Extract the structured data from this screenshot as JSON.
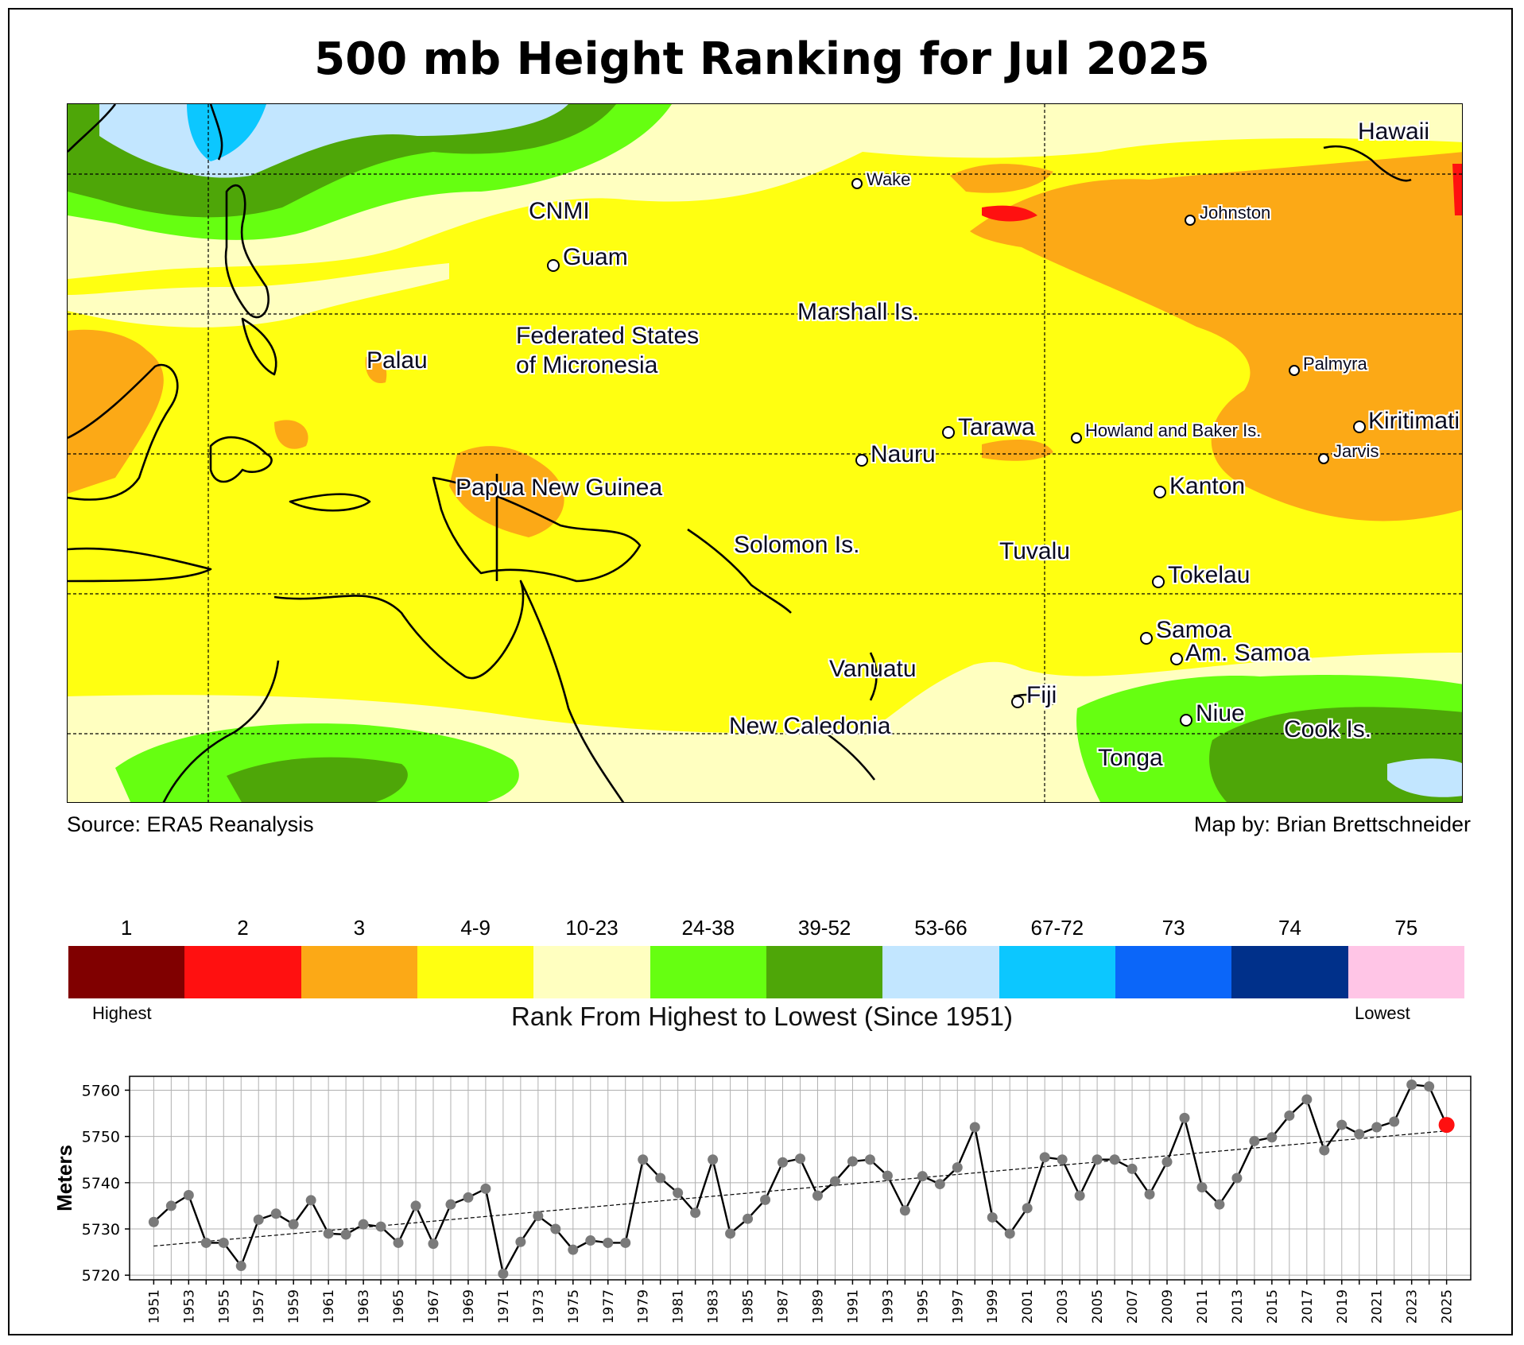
{
  "title": "500 mb Height Ranking for Jul 2025",
  "credits": {
    "source": "Source: ERA5 Reanalysis",
    "author": "Map by: Brian Brettschneider"
  },
  "map": {
    "labels": [
      {
        "name": "wake",
        "text": "Wake",
        "marker": true,
        "size": "small"
      },
      {
        "name": "cnmi",
        "text": "CNMI",
        "marker": false,
        "size": "large"
      },
      {
        "name": "guam",
        "text": "Guam",
        "marker": true,
        "size": "large"
      },
      {
        "name": "marshall",
        "text": "Marshall Is.",
        "marker": false,
        "size": "large"
      },
      {
        "name": "fsm",
        "text": "Federated States",
        "marker": false,
        "size": "large"
      },
      {
        "name": "fsm2",
        "text": "of Micronesia",
        "marker": false,
        "size": "large"
      },
      {
        "name": "palau",
        "text": "Palau",
        "marker": false,
        "size": "large"
      },
      {
        "name": "tarawa",
        "text": "Tarawa",
        "marker": true,
        "size": "large"
      },
      {
        "name": "nauru",
        "text": "Nauru",
        "marker": true,
        "size": "large"
      },
      {
        "name": "howland",
        "text": "Howland and Baker Is.",
        "marker": true,
        "size": "small"
      },
      {
        "name": "png",
        "text": "Papua New Guinea",
        "marker": false,
        "size": "large"
      },
      {
        "name": "solomon",
        "text": "Solomon Is.",
        "marker": false,
        "size": "large"
      },
      {
        "name": "tuvalu",
        "text": "Tuvalu",
        "marker": false,
        "size": "large"
      },
      {
        "name": "kanton",
        "text": "Kanton",
        "marker": true,
        "size": "large"
      },
      {
        "name": "tokelau",
        "text": "Tokelau",
        "marker": true,
        "size": "large"
      },
      {
        "name": "samoa",
        "text": "Samoa",
        "marker": true,
        "size": "large"
      },
      {
        "name": "amsamoa",
        "text": "Am. Samoa",
        "marker": true,
        "size": "large"
      },
      {
        "name": "vanuatu",
        "text": "Vanuatu",
        "marker": false,
        "size": "large"
      },
      {
        "name": "fiji",
        "text": "Fiji",
        "marker": true,
        "size": "large"
      },
      {
        "name": "niue",
        "text": "Niue",
        "marker": true,
        "size": "large"
      },
      {
        "name": "newcal",
        "text": "New Caledonia",
        "marker": false,
        "size": "large"
      },
      {
        "name": "cook",
        "text": "Cook Is.",
        "marker": false,
        "size": "large"
      },
      {
        "name": "tonga",
        "text": "Tonga",
        "marker": false,
        "size": "large"
      },
      {
        "name": "hawaii",
        "text": "Hawaii",
        "marker": false,
        "size": "large"
      },
      {
        "name": "johnston",
        "text": "Johnston",
        "marker": true,
        "size": "small"
      },
      {
        "name": "palmyra",
        "text": "Palmyra",
        "marker": true,
        "size": "small"
      },
      {
        "name": "kiritimati",
        "text": "Kiritimati",
        "marker": true,
        "size": "large"
      },
      {
        "name": "jarvis",
        "text": "Jarvis",
        "marker": true,
        "size": "small"
      }
    ]
  },
  "legend": {
    "title": "Rank From Highest to Lowest (Since 1951)",
    "highest": "Highest",
    "lowest": "Lowest",
    "classes": [
      {
        "label": "1",
        "color": "#800000"
      },
      {
        "label": "2",
        "color": "#ff1010"
      },
      {
        "label": "3",
        "color": "#fca916"
      },
      {
        "label": "4-9",
        "color": "#ffff11"
      },
      {
        "label": "10-23",
        "color": "#ffffc0"
      },
      {
        "label": "24-38",
        "color": "#66ff11"
      },
      {
        "label": "39-52",
        "color": "#4ea608"
      },
      {
        "label": "53-66",
        "color": "#c2e6ff"
      },
      {
        "label": "67-72",
        "color": "#0cc7ff"
      },
      {
        "label": "73",
        "color": "#0b66f9"
      },
      {
        "label": "74",
        "color": "#00308a"
      },
      {
        "label": "75",
        "color": "#ffc5e6"
      }
    ]
  },
  "chart_data": {
    "type": "line",
    "ylabel": "Meters",
    "ylim": [
      5719,
      5763
    ],
    "yticks": [
      5720,
      5730,
      5740,
      5750,
      5760
    ],
    "grid": true,
    "highlight_last_color": "#ff1010",
    "trend": {
      "style": "dashed",
      "start": [
        1951,
        5726.3
      ],
      "end": [
        2025,
        5751.2
      ]
    },
    "x": [
      1951,
      1952,
      1953,
      1954,
      1955,
      1956,
      1957,
      1958,
      1959,
      1960,
      1961,
      1962,
      1963,
      1964,
      1965,
      1966,
      1967,
      1968,
      1969,
      1970,
      1971,
      1972,
      1973,
      1974,
      1975,
      1976,
      1977,
      1978,
      1979,
      1980,
      1981,
      1982,
      1983,
      1984,
      1985,
      1986,
      1987,
      1988,
      1989,
      1990,
      1991,
      1992,
      1993,
      1994,
      1995,
      1996,
      1997,
      1998,
      1999,
      2000,
      2001,
      2002,
      2003,
      2004,
      2005,
      2006,
      2007,
      2008,
      2009,
      2010,
      2011,
      2012,
      2013,
      2014,
      2015,
      2016,
      2017,
      2018,
      2019,
      2020,
      2021,
      2022,
      2023,
      2024,
      2025
    ],
    "values": [
      5731.5,
      5735,
      5737.3,
      5727,
      5727,
      5722,
      5732,
      5733.3,
      5731,
      5736.2,
      5729,
      5728.8,
      5731,
      5730.5,
      5727,
      5735,
      5726.8,
      5735.3,
      5736.8,
      5738.7,
      5720.3,
      5727.2,
      5732.8,
      5730,
      5725.5,
      5727.5,
      5727,
      5727,
      5745,
      5741,
      5737.8,
      5733.5,
      5745,
      5729,
      5732.2,
      5736.3,
      5744.4,
      5745.2,
      5737.2,
      5740.3,
      5744.6,
      5745,
      5741.5,
      5734,
      5741.4,
      5739.7,
      5743.3,
      5752,
      5732.5,
      5729,
      5734.5,
      5745.5,
      5745,
      5737.2,
      5745,
      5745,
      5743,
      5737.5,
      5744.5,
      5754,
      5739,
      5735.3,
      5741,
      5749,
      5749.8,
      5754.5,
      5758,
      5747,
      5752.5,
      5750.5,
      5752,
      5753.2,
      5761.2,
      5760.8,
      5752.5
    ]
  }
}
